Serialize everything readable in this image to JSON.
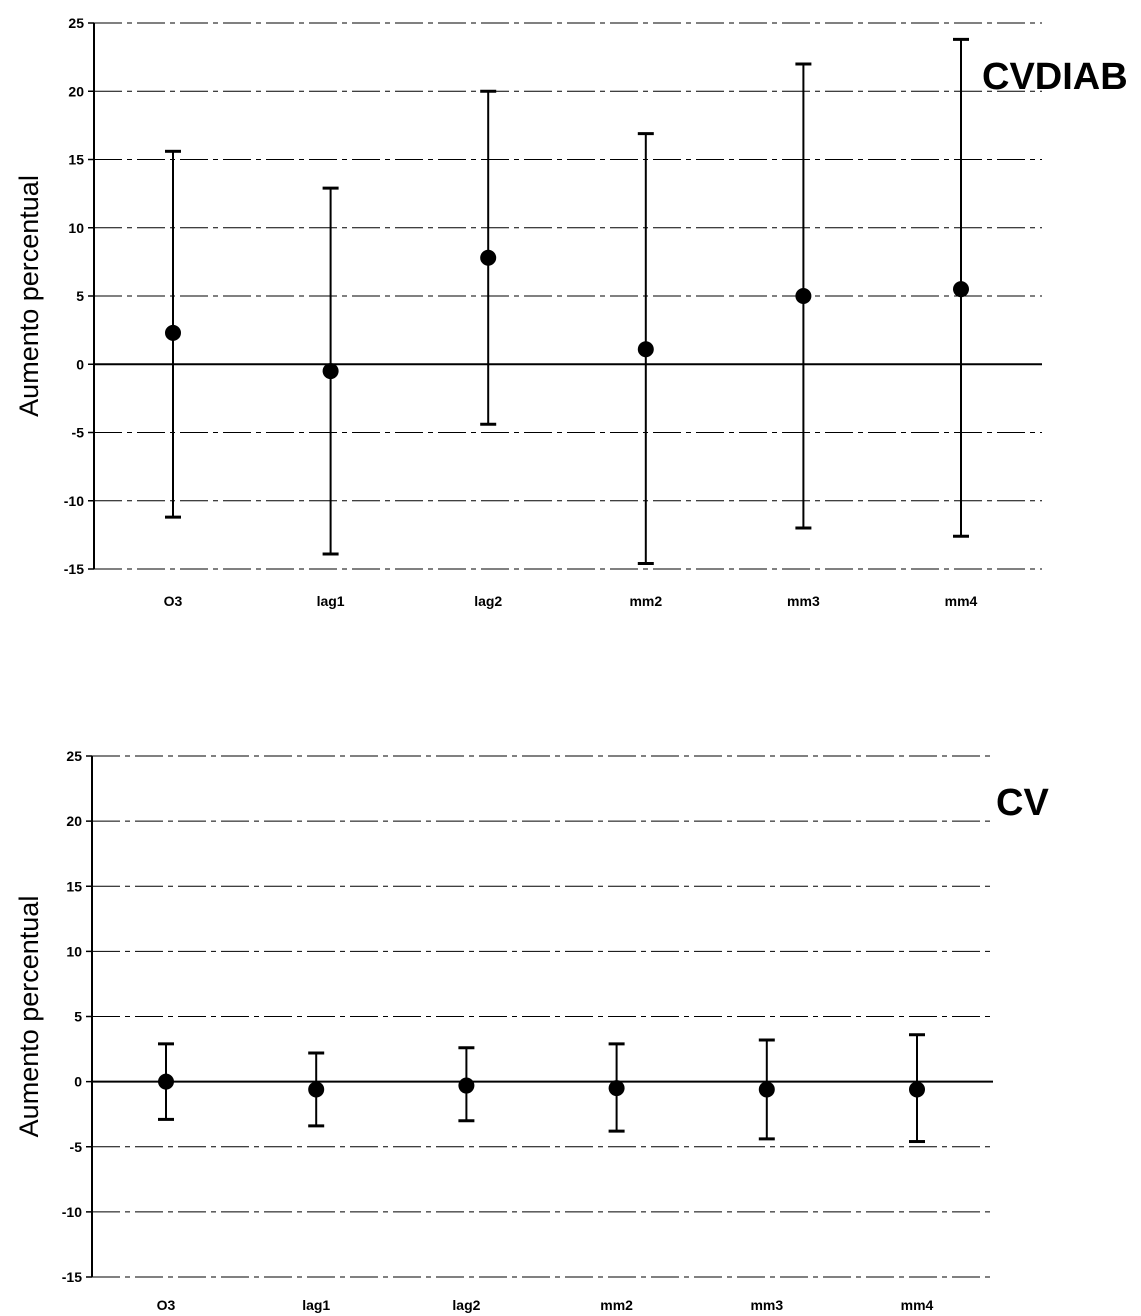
{
  "chart_data": [
    {
      "type": "errorbar",
      "title": "CVDIAB",
      "ylabel": "Aumento percentual",
      "xlabel": "",
      "categories": [
        "O3",
        "lag1",
        "lag2",
        "mm2",
        "mm3",
        "mm4"
      ],
      "ylim": [
        -15,
        25
      ],
      "yticks": [
        25,
        20,
        15,
        10,
        5,
        0,
        -5,
        -10,
        -15
      ],
      "grid": true,
      "series": [
        {
          "values": [
            2.3,
            -0.5,
            7.8,
            1.1,
            5.0,
            5.5
          ],
          "lower": [
            -11.2,
            -13.9,
            -4.4,
            -14.6,
            -12.0,
            -12.6
          ],
          "upper": [
            15.6,
            12.9,
            20.0,
            16.9,
            22.0,
            23.8
          ]
        }
      ]
    },
    {
      "type": "errorbar",
      "title": "CV",
      "ylabel": "Aumento percentual",
      "xlabel": "",
      "categories": [
        "O3",
        "lag1",
        "lag2",
        "mm2",
        "mm3",
        "mm4"
      ],
      "ylim": [
        -15,
        25
      ],
      "yticks": [
        25,
        20,
        15,
        10,
        5,
        0,
        -5,
        -10,
        -15
      ],
      "grid": true,
      "series": [
        {
          "values": [
            0.0,
            -0.6,
            -0.3,
            -0.5,
            -0.6,
            -0.6
          ],
          "lower": [
            -2.9,
            -3.4,
            -3.0,
            -3.8,
            -4.4,
            -4.6
          ],
          "upper": [
            2.9,
            2.2,
            2.6,
            2.9,
            3.2,
            3.6
          ]
        }
      ]
    }
  ]
}
